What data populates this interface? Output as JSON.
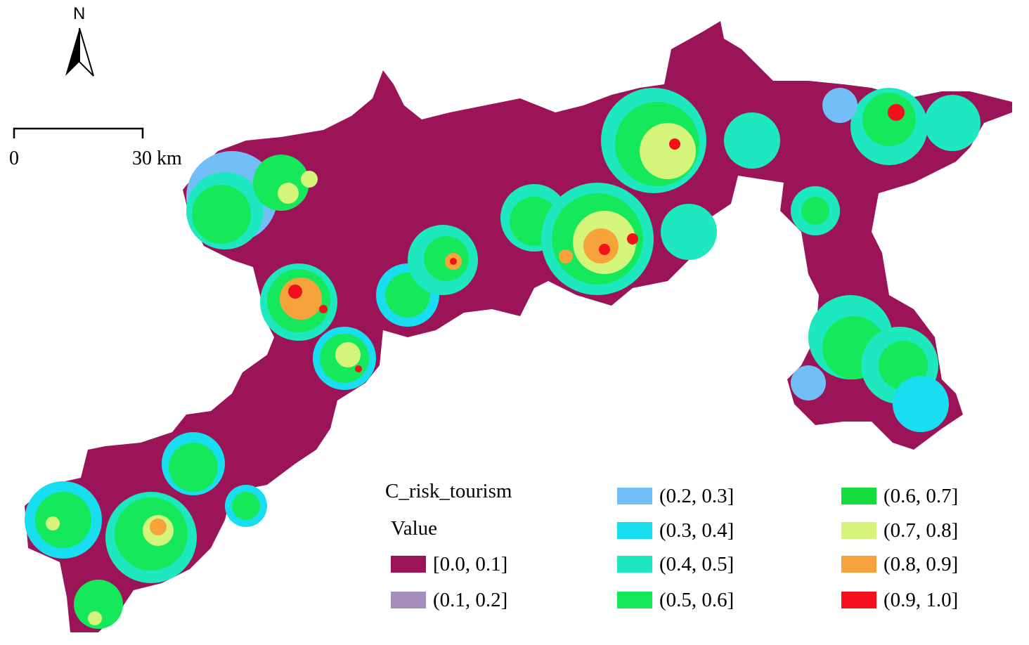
{
  "north_arrow": {
    "label": "N"
  },
  "scale_bar": {
    "start_label": "0",
    "end_label": "30 km"
  },
  "legend": {
    "title": "C_risk_tourism",
    "subtitle": "Value",
    "items": [
      {
        "label": "[0.0, 0.1]",
        "color": "#9b1458"
      },
      {
        "label": "(0.1, 0.2]",
        "color": "#a58dbe"
      },
      {
        "label": "(0.2, 0.3]",
        "color": "#72bef7"
      },
      {
        "label": "(0.3, 0.4]",
        "color": "#19def0"
      },
      {
        "label": "(0.4, 0.5]",
        "color": "#1de8bf"
      },
      {
        "label": "(0.5, 0.6]",
        "color": "#15e85a"
      },
      {
        "label": "(0.6, 0.7]",
        "color": "#14dc3a"
      },
      {
        "label": "(0.7, 0.8]",
        "color": "#d4f57a"
      },
      {
        "label": "(0.8, 0.9]",
        "color": "#f6a33b"
      },
      {
        "label": "(0.9, 1.0]",
        "color": "#f2101a"
      }
    ]
  },
  "map": {
    "base_color": "#9b1458",
    "class_colors": {
      "low_blue": "#72bef7",
      "cyan": "#19def0",
      "teal": "#1de8bf",
      "green": "#15e85a",
      "dark_green": "#14dc3a",
      "yellow": "#d4f57a",
      "orange": "#f6a33b",
      "red": "#f2101a"
    }
  }
}
